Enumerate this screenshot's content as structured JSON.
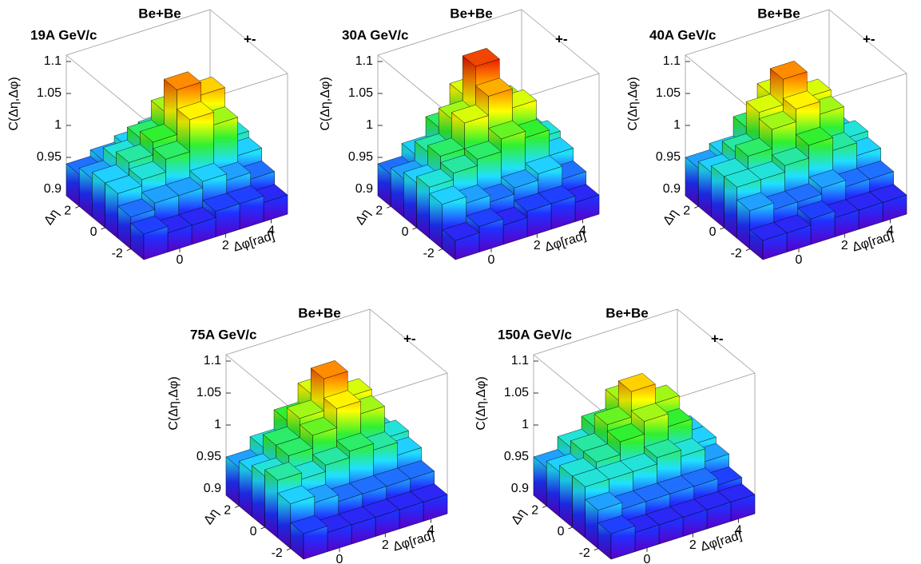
{
  "chart_data": [
    {
      "type": "bar3d",
      "title": "Be+Be",
      "subtitle": "19A GeV/c",
      "charge": "+-",
      "xlabel": "Δφ[rad]",
      "ylabel": "Δη",
      "zlabel": "C(Δη,Δφ)",
      "xlim": [
        -1.571,
        4.712
      ],
      "ylim": [
        -3,
        3
      ],
      "zlim": [
        0.89,
        1.11
      ],
      "xticks": [
        0,
        2,
        4
      ],
      "yticks": [
        -2,
        0,
        2
      ],
      "zticks": [
        0.9,
        0.95,
        1,
        1.05,
        1.1
      ],
      "colormap": [
        "#5a00c8",
        "#2030ff",
        "#20e0ff",
        "#30f030",
        "#ffff00",
        "#ff8000",
        "#e00000"
      ],
      "values": [
        [
          0.93,
          0.92,
          0.92,
          0.93,
          0.93,
          0.92
        ],
        [
          0.94,
          0.95,
          0.95,
          0.96,
          0.95,
          0.94
        ],
        [
          0.96,
          0.97,
          0.99,
          1.04,
          1.02,
          0.96
        ],
        [
          0.96,
          0.98,
          1.0,
          1.07,
          1.05,
          0.97
        ],
        [
          0.95,
          0.97,
          0.99,
          1.02,
          1.0,
          0.96
        ],
        [
          0.94,
          0.95,
          0.96,
          0.97,
          0.96,
          0.95
        ]
      ]
    },
    {
      "type": "bar3d",
      "title": "Be+Be",
      "subtitle": "30A GeV/c",
      "charge": "+-",
      "xlabel": "Δφ[rad]",
      "ylabel": "Δη",
      "zlabel": "C(Δη,Δφ)",
      "xlim": [
        -1.571,
        4.712
      ],
      "ylim": [
        -3,
        3
      ],
      "zlim": [
        0.89,
        1.11
      ],
      "xticks": [
        0,
        2,
        4
      ],
      "yticks": [
        -2,
        0,
        2
      ],
      "zticks": [
        0.9,
        0.95,
        1,
        1.05,
        1.1
      ],
      "colormap": [
        "#5a00c8",
        "#2030ff",
        "#20e0ff",
        "#30f030",
        "#ffff00",
        "#ff8000",
        "#e00000"
      ],
      "values": [
        [
          0.92,
          0.93,
          0.92,
          0.93,
          0.93,
          0.92
        ],
        [
          0.96,
          0.95,
          0.94,
          0.95,
          0.96,
          0.94
        ],
        [
          0.97,
          0.98,
          0.99,
          1.01,
          1.0,
          0.96
        ],
        [
          0.96,
          0.99,
          1.03,
          1.06,
          1.03,
          0.97
        ],
        [
          0.95,
          0.98,
          1.02,
          1.09,
          1.02,
          0.96
        ],
        [
          0.94,
          0.96,
          0.99,
          1.03,
          0.99,
          0.95
        ]
      ]
    },
    {
      "type": "bar3d",
      "title": "Be+Be",
      "subtitle": "40A GeV/c",
      "charge": "+-",
      "xlabel": "Δφ[rad]",
      "ylabel": "Δη",
      "zlabel": "C(Δη,Δφ)",
      "xlim": [
        -1.571,
        4.712
      ],
      "ylim": [
        -3,
        3
      ],
      "zlim": [
        0.89,
        1.11
      ],
      "xticks": [
        0,
        2,
        4
      ],
      "yticks": [
        -2,
        0,
        2
      ],
      "zticks": [
        0.9,
        0.95,
        1,
        1.05,
        1.1
      ],
      "colormap": [
        "#5a00c8",
        "#2030ff",
        "#20e0ff",
        "#30f030",
        "#ffff00",
        "#ff8000",
        "#e00000"
      ],
      "values": [
        [
          0.92,
          0.92,
          0.93,
          0.92,
          0.92,
          0.92
        ],
        [
          0.95,
          0.94,
          0.94,
          0.95,
          0.94,
          0.94
        ],
        [
          0.97,
          0.97,
          0.98,
          1.0,
          0.98,
          0.96
        ],
        [
          0.97,
          0.99,
          1.02,
          1.04,
          1.02,
          0.97
        ],
        [
          0.96,
          0.98,
          1.03,
          1.07,
          1.03,
          0.96
        ],
        [
          0.95,
          0.96,
          0.99,
          1.03,
          1.0,
          0.95
        ]
      ]
    },
    {
      "type": "bar3d",
      "title": "Be+Be",
      "subtitle": "75A GeV/c",
      "charge": "+-",
      "xlabel": "Δφ[rad]",
      "ylabel": "Δη",
      "zlabel": "C(Δη,Δφ)",
      "xlim": [
        -1.571,
        4.712
      ],
      "ylim": [
        -3,
        3
      ],
      "zlim": [
        0.89,
        1.11
      ],
      "xticks": [
        0,
        2,
        4
      ],
      "yticks": [
        -2,
        0,
        2
      ],
      "zticks": [
        0.9,
        0.95,
        1,
        1.05,
        1.1
      ],
      "colormap": [
        "#5a00c8",
        "#2030ff",
        "#20e0ff",
        "#30f030",
        "#ffff00",
        "#ff8000",
        "#e00000"
      ],
      "values": [
        [
          0.93,
          0.92,
          0.92,
          0.92,
          0.92,
          0.92
        ],
        [
          0.96,
          0.95,
          0.94,
          0.94,
          0.94,
          0.94
        ],
        [
          0.98,
          0.97,
          0.98,
          0.99,
          0.98,
          0.96
        ],
        [
          0.97,
          0.99,
          1.01,
          1.04,
          1.02,
          0.97
        ],
        [
          0.96,
          0.99,
          1.02,
          1.07,
          1.03,
          0.96
        ],
        [
          0.95,
          0.97,
          1.0,
          1.03,
          1.0,
          0.95
        ]
      ]
    },
    {
      "type": "bar3d",
      "title": "Be+Be",
      "subtitle": "150A GeV/c",
      "charge": "+-",
      "xlabel": "Δφ[rad]",
      "ylabel": "Δη",
      "zlabel": "C(Δη,Δφ)",
      "xlim": [
        -1.571,
        4.712
      ],
      "ylim": [
        -3,
        3
      ],
      "zlim": [
        0.89,
        1.11
      ],
      "xticks": [
        0,
        2,
        4
      ],
      "yticks": [
        -2,
        0,
        2
      ],
      "zticks": [
        0.9,
        0.95,
        1,
        1.05,
        1.1
      ],
      "colormap": [
        "#5a00c8",
        "#2030ff",
        "#20e0ff",
        "#30f030",
        "#ffff00",
        "#ff8000",
        "#e00000"
      ],
      "values": [
        [
          0.93,
          0.92,
          0.92,
          0.92,
          0.92,
          0.92
        ],
        [
          0.95,
          0.94,
          0.94,
          0.94,
          0.94,
          0.93
        ],
        [
          0.97,
          0.97,
          0.97,
          0.98,
          0.97,
          0.95
        ],
        [
          0.97,
          0.98,
          1.0,
          1.02,
          1.0,
          0.96
        ],
        [
          0.96,
          0.98,
          1.01,
          1.05,
          1.02,
          0.96
        ],
        [
          0.95,
          0.97,
          0.99,
          1.02,
          0.99,
          0.95
        ]
      ]
    }
  ]
}
